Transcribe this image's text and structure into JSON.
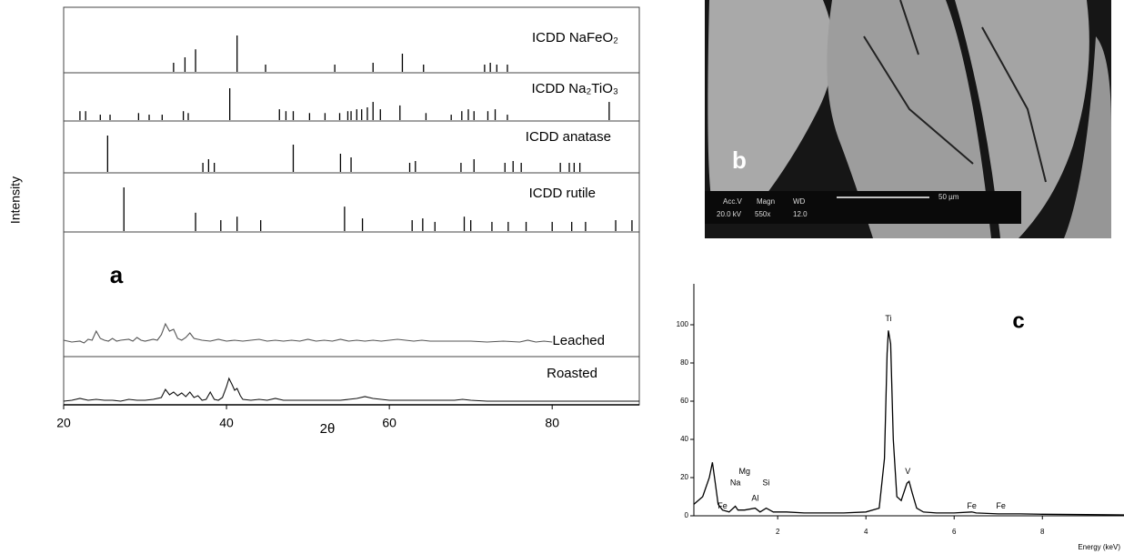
{
  "chart_data": [
    {
      "type": "patterns",
      "xlabel": "2θ",
      "ylabel": "Intensity",
      "panel_label": "a",
      "xlim": [
        20,
        90.7
      ],
      "xticks": [
        20,
        40,
        60,
        80
      ],
      "series": [
        {
          "name": "ICDD NaFeO₂",
          "kind": "stick",
          "color": "#000000",
          "x": [
            33.5,
            34.9,
            36.2,
            41.3,
            44.8,
            53.3,
            58.0,
            61.6,
            64.2,
            71.7,
            72.4,
            73.2,
            74.5
          ],
          "values": [
            25,
            40,
            62,
            100,
            20,
            20,
            25,
            50,
            20,
            20,
            25,
            20,
            20
          ]
        },
        {
          "name": "ICDD Na₂TiO₃",
          "kind": "stick",
          "color": "#000000",
          "x": [
            22.0,
            22.7,
            24.5,
            25.7,
            29.2,
            30.5,
            32.1,
            34.7,
            35.3,
            40.4,
            46.5,
            47.3,
            48.2,
            50.2,
            52.1,
            53.9,
            54.9,
            55.3,
            56.0,
            56.6,
            57.3,
            58.0,
            58.9,
            61.3,
            64.5,
            67.6,
            68.9,
            69.7,
            70.4,
            72.1,
            73.0,
            74.5,
            87.0
          ],
          "values": [
            28,
            28,
            17,
            17,
            22,
            17,
            17,
            28,
            22,
            100,
            34,
            28,
            28,
            22,
            22,
            22,
            28,
            28,
            34,
            34,
            40,
            57,
            34,
            46,
            22,
            17,
            28,
            34,
            28,
            28,
            34,
            17,
            57
          ]
        },
        {
          "name": "ICDD anatase",
          "kind": "stick",
          "color": "#000000",
          "x": [
            25.4,
            37.1,
            37.8,
            38.5,
            48.2,
            54.0,
            55.3,
            62.5,
            63.2,
            68.8,
            70.4,
            74.2,
            75.2,
            76.2,
            81.0,
            82.1,
            82.7,
            83.4
          ],
          "values": [
            100,
            25,
            35,
            25,
            75,
            50,
            40,
            25,
            30,
            25,
            35,
            25,
            30,
            25,
            25,
            25,
            25,
            25
          ]
        },
        {
          "name": "ICDD rutile",
          "kind": "stick",
          "color": "#000000",
          "x": [
            27.4,
            36.2,
            39.3,
            41.3,
            44.2,
            54.5,
            56.7,
            62.8,
            64.1,
            65.6,
            69.2,
            70.0,
            72.6,
            74.6,
            76.8,
            80.0,
            82.4,
            84.1,
            87.8,
            89.8
          ],
          "values": [
            100,
            42,
            25,
            33,
            25,
            56,
            29,
            25,
            29,
            21,
            33,
            25,
            21,
            21,
            21,
            21,
            21,
            21,
            25,
            25
          ]
        },
        {
          "name": "Leached",
          "kind": "line",
          "color": "#555555",
          "x": [
            20,
            21,
            22,
            22.5,
            23,
            23.5,
            24,
            24.5,
            25,
            25.5,
            26,
            26.5,
            27,
            28,
            28.5,
            29,
            29.5,
            30,
            31,
            31.5,
            32,
            32.5,
            33,
            33.5,
            34,
            34.5,
            35,
            35.5,
            36,
            37,
            38,
            39,
            40,
            41,
            42,
            43,
            44,
            45,
            46,
            47,
            48,
            49,
            50,
            51,
            52,
            53,
            54,
            55,
            56,
            57,
            58,
            59,
            60,
            61,
            62,
            63,
            64,
            65,
            66,
            68,
            70,
            72,
            74,
            76,
            77,
            78,
            79,
            80
          ],
          "values": [
            4,
            2,
            3,
            1,
            5,
            4,
            14,
            6,
            4,
            3,
            6,
            3,
            4,
            5,
            3,
            7,
            4,
            3,
            5,
            4,
            10,
            22,
            14,
            16,
            6,
            4,
            7,
            12,
            6,
            4,
            3,
            5,
            3,
            4,
            3,
            4,
            5,
            3,
            4,
            3,
            4,
            3,
            5,
            3,
            4,
            3,
            5,
            3,
            4,
            3,
            4,
            3,
            4,
            5,
            4,
            3,
            4,
            3,
            3,
            3,
            3,
            2,
            3,
            2,
            4,
            2,
            3,
            2
          ]
        },
        {
          "name": "Roasted",
          "kind": "line",
          "color": "#111111",
          "x": [
            20,
            21,
            22,
            23,
            24,
            25,
            26,
            27,
            28,
            29,
            30,
            31,
            32,
            32.5,
            33,
            33.5,
            34,
            34.5,
            35,
            35.5,
            36,
            36.5,
            37,
            37.5,
            38,
            38.5,
            39,
            39.5,
            40,
            40.3,
            40.7,
            41,
            41.3,
            41.7,
            42,
            43,
            44,
            45,
            46,
            47,
            48,
            50,
            52,
            54,
            55,
            56,
            57,
            58,
            59,
            60,
            62,
            64,
            66,
            68,
            69,
            70,
            72,
            74,
            76,
            78,
            80,
            82,
            84,
            86,
            88,
            90,
            90.7
          ],
          "values": [
            2,
            3,
            5,
            3,
            4,
            3,
            3,
            2,
            4,
            3,
            3,
            4,
            6,
            15,
            9,
            12,
            8,
            11,
            7,
            12,
            6,
            8,
            3,
            4,
            12,
            4,
            3,
            6,
            18,
            27,
            20,
            14,
            16,
            8,
            4,
            3,
            4,
            3,
            5,
            3,
            3,
            3,
            3,
            3,
            4,
            5,
            7,
            5,
            4,
            3,
            3,
            3,
            3,
            3,
            4,
            3,
            2,
            2,
            2,
            2,
            2,
            2,
            2,
            2,
            2,
            2,
            2
          ]
        }
      ]
    },
    {
      "type": "line",
      "panel_label": "c",
      "xlabel": "Energy (keV)",
      "color": "#000000",
      "xlim": [
        0.1,
        9.85
      ],
      "xticks": [
        2,
        4,
        6,
        8
      ],
      "ylim": [
        0,
        120
      ],
      "yticks": [
        0,
        20,
        40,
        60,
        80,
        100
      ],
      "x": [
        0.1,
        0.3,
        0.45,
        0.52,
        0.58,
        0.65,
        0.75,
        0.9,
        1.04,
        1.1,
        1.25,
        1.49,
        1.6,
        1.74,
        1.9,
        2.2,
        2.6,
        3,
        3.5,
        4,
        4.3,
        4.42,
        4.48,
        4.51,
        4.56,
        4.62,
        4.7,
        4.8,
        4.93,
        4.98,
        5.05,
        5.15,
        5.3,
        5.6,
        6,
        6.4,
        6.5,
        7,
        7.5,
        8,
        9,
        9.85
      ],
      "values": [
        6,
        10,
        20,
        28,
        18,
        6,
        3,
        2,
        5,
        3,
        3,
        4,
        2,
        4,
        2,
        2,
        1.5,
        1.5,
        1.5,
        2,
        4,
        30,
        85,
        97,
        90,
        40,
        10,
        8,
        17,
        18,
        12,
        4,
        2,
        1.5,
        1.5,
        2,
        1.5,
        1,
        1,
        0.8,
        0.6,
        0.5
      ],
      "annotations": [
        {
          "text": "Ti",
          "x": 4.51,
          "y": 103
        },
        {
          "text": "V",
          "x": 4.95,
          "y": 23
        },
        {
          "text": "Fe",
          "x": 0.75,
          "y": 5
        },
        {
          "text": "Na",
          "x": 1.04,
          "y": 17
        },
        {
          "text": "Mg",
          "x": 1.25,
          "y": 23
        },
        {
          "text": "Al",
          "x": 1.49,
          "y": 9
        },
        {
          "text": "Si",
          "x": 1.74,
          "y": 17
        },
        {
          "text": "Fe",
          "x": 6.4,
          "y": 5
        },
        {
          "text": "Fe",
          "x": 7.06,
          "y": 5
        }
      ]
    }
  ],
  "image_b": {
    "label": "b",
    "acc_v": "Acc.V",
    "magn": "Magn",
    "wd": "WD",
    "kv": "20.0 kV",
    "magnification": "550x",
    "wd_value": "12.0",
    "scale": "50 µm"
  }
}
